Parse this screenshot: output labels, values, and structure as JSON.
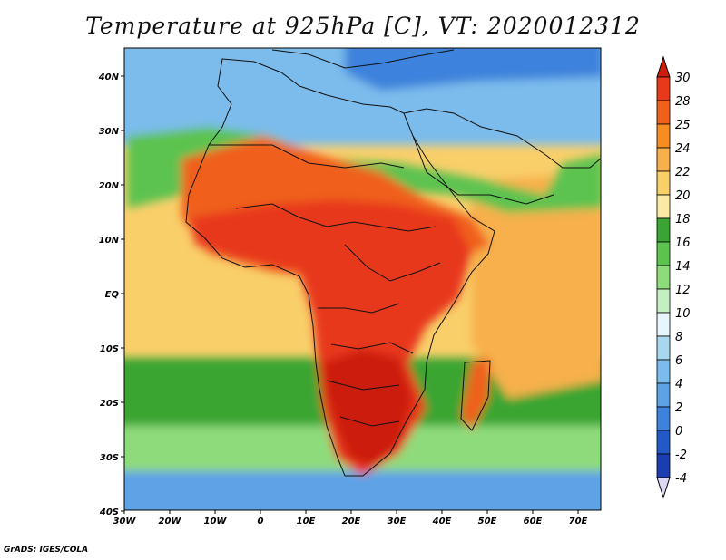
{
  "title": "Temperature at 925hPa [C], VT: 2020012312",
  "credit": "GrADS: IGES/COLA",
  "map": {
    "lon_labels": [
      "30W",
      "20W",
      "10W",
      "0",
      "10E",
      "20E",
      "30E",
      "40E",
      "50E",
      "60E",
      "70E"
    ],
    "lat_labels": [
      "40N",
      "30N",
      "20N",
      "10N",
      "EQ",
      "10S",
      "20S",
      "30S",
      "40S"
    ]
  },
  "colorbar": {
    "labels": [
      "30",
      "28",
      "25",
      "24",
      "22",
      "20",
      "18",
      "16",
      "14",
      "12",
      "10",
      "8",
      "6",
      "4",
      "2",
      "0",
      "-2",
      "-4"
    ],
    "colors": [
      "#cc1d0c",
      "#e8391a",
      "#f0601d",
      "#f68c22",
      "#f7b04b",
      "#f9cf6a",
      "#fbe9a6",
      "#3aa533",
      "#5dc34f",
      "#8edb7c",
      "#c4efc0",
      "#e6f6fb",
      "#a8d8f0",
      "#7bbcec",
      "#5ea2e6",
      "#3e82dc",
      "#2359c6",
      "#1a3eb0",
      "#12218a"
    ]
  },
  "field_colors": {
    "ocean_south_cold": "#5ea2e6",
    "ocean_south_mid": "#8edb7c",
    "ocean_south_green": "#3aa533",
    "ocean_tropic": "#f9cf6a",
    "ocean_warm": "#f7b04b",
    "land_hot": "#e8391a",
    "land_very_hot": "#cc1d0c",
    "land_warm": "#f0601d",
    "north_cool": "#7bbcec",
    "north_cold": "#3e82dc",
    "north_green": "#5dc34f"
  }
}
